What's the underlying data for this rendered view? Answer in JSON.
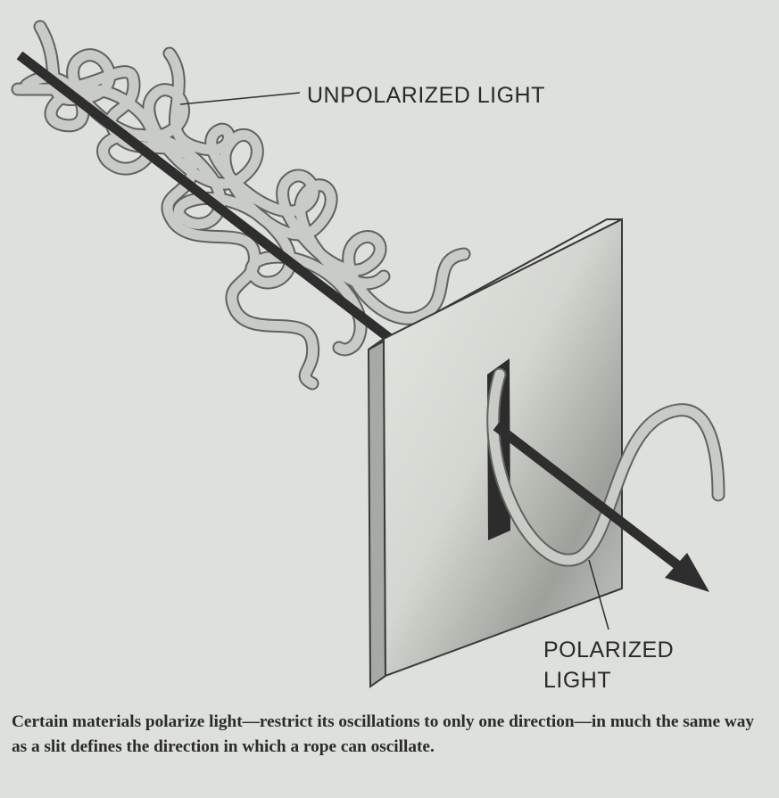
{
  "figure": {
    "unpolarized_label": "UNPOLARIZED LIGHT",
    "polarized_label_line1": "POLARIZED",
    "polarized_label_line2": "LIGHT",
    "colors": {
      "background": "#dde0db",
      "ribbon_fill": "#c9ccc6",
      "ribbon_edge": "#5f625d",
      "beam": "#2e2e2e",
      "screen_face": "#d6d8d3",
      "screen_shade": "#8f928c",
      "screen_edge": "#3a3a3a"
    },
    "icons": [
      "rope-ribbon",
      "arrow",
      "polarizing-screen",
      "slit"
    ]
  },
  "caption": "Certain materials polarize light—restrict its oscillations to only one direction—in much the same way as a slit defines the direction in which a rope can oscillate."
}
